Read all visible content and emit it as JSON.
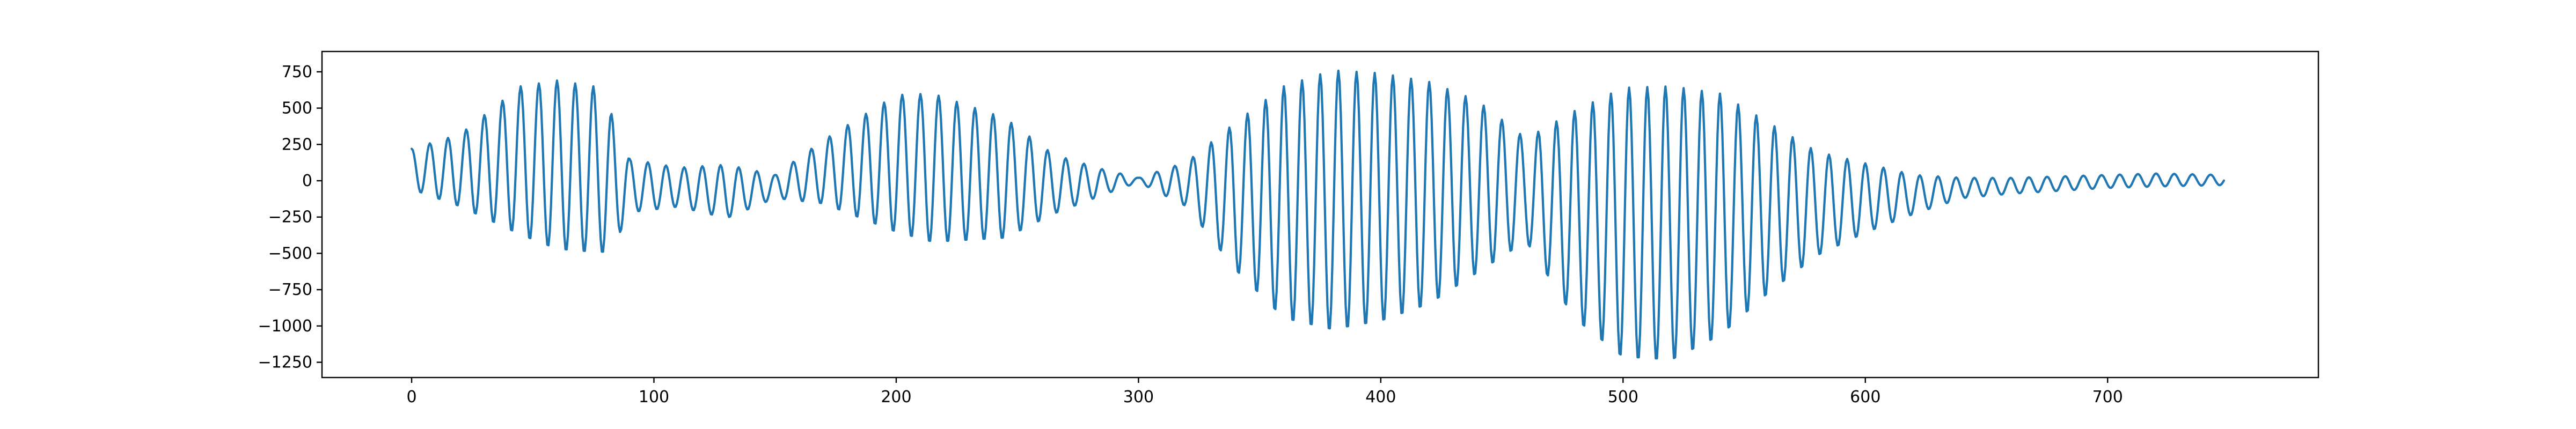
{
  "chart_data": {
    "type": "line",
    "title": "",
    "xlabel": "",
    "ylabel": "",
    "xlim": [
      -37,
      787
    ],
    "ylim": [
      -1355,
      890
    ],
    "grid": false,
    "legend": "none",
    "x_ticks": [
      0,
      100,
      200,
      300,
      400,
      500,
      600,
      700
    ],
    "x_tick_labels": [
      "0",
      "100",
      "200",
      "300",
      "400",
      "500",
      "600",
      "700"
    ],
    "y_ticks": [
      750,
      500,
      250,
      0,
      -250,
      -500,
      -750,
      -1000,
      -1250
    ],
    "y_tick_labels": [
      "750",
      "500",
      "250",
      "0",
      "−250",
      "−500",
      "−750",
      "−1000",
      "−1250"
    ],
    "series": [
      {
        "color": "#1f77b4",
        "envelope_x": [
          0,
          20,
          45,
          60,
          75,
          82,
          90,
          110,
          130,
          150,
          170,
          200,
          215,
          245,
          265,
          285,
          300,
          320,
          340,
          360,
          380,
          400,
          420,
          440,
          460,
          480,
          500,
          520,
          540,
          560,
          580,
          600,
          620,
          640,
          660,
          680,
          700,
          720,
          748
        ],
        "envelope_upper": [
          220,
          320,
          650,
          690,
          650,
          480,
          150,
          90,
          110,
          40,
          280,
          590,
          600,
          430,
          180,
          80,
          20,
          130,
          400,
          650,
          760,
          740,
          680,
          550,
          290,
          480,
          640,
          650,
          600,
          400,
          200,
          120,
          40,
          20,
          20,
          30,
          40,
          50,
          40
        ],
        "envelope_lower": [
          -60,
          -180,
          -380,
          -480,
          -500,
          -500,
          -220,
          -180,
          -260,
          -120,
          -160,
          -360,
          -430,
          -400,
          -230,
          -100,
          -10,
          -180,
          -620,
          -960,
          -1040,
          -980,
          -860,
          -640,
          -420,
          -960,
          -1230,
          -1250,
          -1080,
          -780,
          -520,
          -360,
          -230,
          -120,
          -90,
          -70,
          -50,
          -40,
          -30
        ],
        "cycle_period": 7.5,
        "x_start": 0,
        "x_end": 748,
        "point_step": 0.5
      }
    ]
  }
}
